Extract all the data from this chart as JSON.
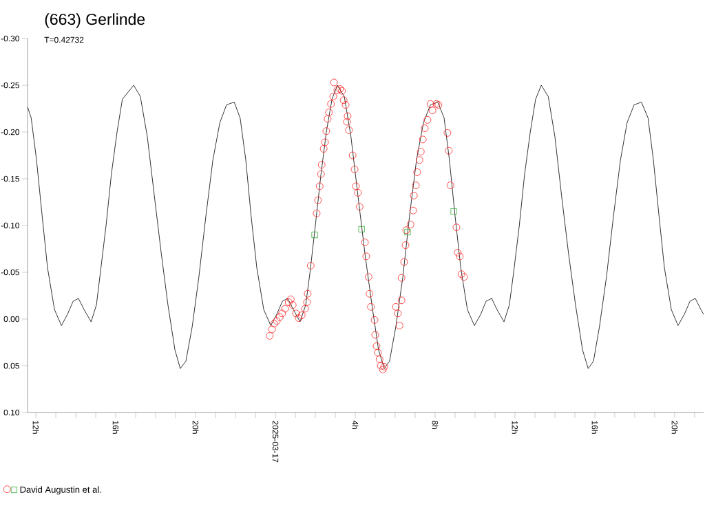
{
  "chart_data": {
    "type": "scatter",
    "title": "(663) Gerlinde",
    "subtitle": "T=0.42732",
    "xlim": [
      "2025-03-16T11:35",
      "2025-03-17T21:27"
    ],
    "ylim": [
      0.1,
      -0.3
    ],
    "xticks": [
      {
        "value": "2025-03-16T12:00",
        "label": "12h"
      },
      {
        "value": "2025-03-16T13:00",
        "label": null
      },
      {
        "value": "2025-03-16T14:00",
        "label": null
      },
      {
        "value": "2025-03-16T15:00",
        "label": null
      },
      {
        "value": "2025-03-16T16:00",
        "label": "16h"
      },
      {
        "value": "2025-03-16T17:00",
        "label": null
      },
      {
        "value": "2025-03-16T18:00",
        "label": null
      },
      {
        "value": "2025-03-16T19:00",
        "label": null
      },
      {
        "value": "2025-03-16T20:00",
        "label": "20h"
      },
      {
        "value": "2025-03-16T21:00",
        "label": null
      },
      {
        "value": "2025-03-16T22:00",
        "label": null
      },
      {
        "value": "2025-03-16T23:00",
        "label": null
      },
      {
        "value": "2025-03-17T00:00",
        "label": "2025-03-17"
      },
      {
        "value": "2025-03-17T01:00",
        "label": null
      },
      {
        "value": "2025-03-17T02:00",
        "label": null
      },
      {
        "value": "2025-03-17T03:00",
        "label": null
      },
      {
        "value": "2025-03-17T04:00",
        "label": "4h"
      },
      {
        "value": "2025-03-17T05:00",
        "label": null
      },
      {
        "value": "2025-03-17T06:00",
        "label": null
      },
      {
        "value": "2025-03-17T07:00",
        "label": null
      },
      {
        "value": "2025-03-17T08:00",
        "label": "8h"
      },
      {
        "value": "2025-03-17T09:00",
        "label": null
      },
      {
        "value": "2025-03-17T10:00",
        "label": null
      },
      {
        "value": "2025-03-17T11:00",
        "label": null
      },
      {
        "value": "2025-03-17T12:00",
        "label": "12h"
      },
      {
        "value": "2025-03-17T13:00",
        "label": null
      },
      {
        "value": "2025-03-17T14:00",
        "label": null
      },
      {
        "value": "2025-03-17T15:00",
        "label": null
      },
      {
        "value": "2025-03-17T16:00",
        "label": "16h"
      },
      {
        "value": "2025-03-17T17:00",
        "label": null
      },
      {
        "value": "2025-03-17T18:00",
        "label": null
      },
      {
        "value": "2025-03-17T19:00",
        "label": null
      },
      {
        "value": "2025-03-17T20:00",
        "label": "20h"
      },
      {
        "value": "2025-03-17T21:00",
        "label": null
      }
    ],
    "yticks": [
      {
        "value": -0.3,
        "label": "-0.30"
      },
      -0.25,
      {
        "value": -0.2,
        "label": "-0.20"
      },
      -0.15,
      {
        "value": -0.1,
        "label": "-0.10"
      },
      -0.05,
      {
        "value": 0,
        "label": "0.00"
      },
      0.05,
      {
        "value": 0.1,
        "label": "0.10"
      }
    ],
    "legend": "bottom left",
    "series": [
      {
        "type": "line",
        "color": "#000000",
        "marker": "none",
        "line_style": "solid",
        "x": [
          "2025-03-16T11:35",
          "2025-03-16T11:46",
          "2025-03-16T12:02",
          "2025-03-16T12:19",
          "2025-03-16T12:35",
          "2025-03-16T12:56",
          "2025-03-16T13:17",
          "2025-03-16T13:35",
          "2025-03-16T13:52",
          "2025-03-16T14:08",
          "2025-03-16T14:25",
          "2025-03-16T14:46",
          "2025-03-16T15:02",
          "2025-03-16T15:14",
          "2025-03-16T15:31",
          "2025-03-16T15:47",
          "2025-03-16T16:04",
          "2025-03-16T16:20",
          "2025-03-16T16:54",
          "2025-03-16T17:14",
          "2025-03-16T17:35",
          "2025-03-16T17:56",
          "2025-03-16T18:17",
          "2025-03-16T18:37",
          "2025-03-16T18:58",
          "2025-03-16T19:14",
          "2025-03-16T19:31",
          "2025-03-16T19:50",
          "2025-03-16T20:10",
          "2025-03-16T20:31",
          "2025-03-16T20:52",
          "2025-03-16T21:13",
          "2025-03-16T21:33",
          "2025-03-16T21:56",
          "2025-03-16T22:14",
          "2025-03-16T22:31",
          "2025-03-16T22:47",
          "2025-03-16T23:04",
          "2025-03-16T23:25",
          "2025-03-16T23:46",
          "2025-03-17T00:04",
          "2025-03-17T00:21",
          "2025-03-17T00:37",
          "2025-03-17T00:54",
          "2025-03-17T01:14",
          "2025-03-17T01:31",
          "2025-03-17T01:44",
          "2025-03-17T02:00",
          "2025-03-17T02:17",
          "2025-03-17T02:33",
          "2025-03-17T02:50",
          "2025-03-17T03:06",
          "2025-03-17T03:27",
          "2025-03-17T03:47",
          "2025-03-17T04:08",
          "2025-03-17T04:29",
          "2025-03-17T04:50",
          "2025-03-17T05:10",
          "2025-03-17T05:27",
          "2025-03-17T05:43",
          "2025-03-17T06:02",
          "2025-03-17T06:23",
          "2025-03-17T06:43",
          "2025-03-17T07:04",
          "2025-03-17T07:25",
          "2025-03-17T07:46",
          "2025-03-17T08:08",
          "2025-03-17T08:27",
          "2025-03-17T08:43",
          "2025-03-17T09:00",
          "2025-03-17T09:17",
          "2025-03-17T09:37",
          "2025-03-17T09:58",
          "2025-03-17T10:17",
          "2025-03-17T10:33",
          "2025-03-17T10:50",
          "2025-03-17T11:06",
          "2025-03-17T11:27",
          "2025-03-17T11:43",
          "2025-03-17T11:56",
          "2025-03-17T12:13",
          "2025-03-17T12:29",
          "2025-03-17T12:46",
          "2025-03-17T13:02",
          "2025-03-17T13:19",
          "2025-03-17T13:40",
          "2025-03-17T14:00",
          "2025-03-17T14:20",
          "2025-03-17T14:41",
          "2025-03-17T15:02",
          "2025-03-17T15:23",
          "2025-03-17T15:40",
          "2025-03-17T15:56",
          "2025-03-17T16:14",
          "2025-03-17T16:35",
          "2025-03-17T16:56",
          "2025-03-17T17:17",
          "2025-03-17T17:37",
          "2025-03-17T17:58",
          "2025-03-17T18:20",
          "2025-03-17T18:40",
          "2025-03-17T18:56",
          "2025-03-17T19:13",
          "2025-03-17T19:29",
          "2025-03-17T19:50",
          "2025-03-17T20:10",
          "2025-03-17T20:29",
          "2025-03-17T20:46",
          "2025-03-17T21:02",
          "2025-03-17T21:19",
          "2025-03-17T21:27"
        ],
        "values": [
          -0.227,
          -0.215,
          -0.17,
          -0.11,
          -0.055,
          -0.01,
          0.007,
          -0.005,
          -0.019,
          -0.022,
          -0.01,
          0.003,
          -0.015,
          -0.05,
          -0.1,
          -0.155,
          -0.2,
          -0.235,
          -0.25,
          -0.238,
          -0.195,
          -0.132,
          -0.07,
          -0.015,
          0.033,
          0.053,
          0.045,
          0.008,
          -0.045,
          -0.11,
          -0.17,
          -0.21,
          -0.229,
          -0.232,
          -0.215,
          -0.17,
          -0.11,
          -0.055,
          -0.01,
          0.007,
          -0.005,
          -0.019,
          -0.022,
          -0.01,
          0.003,
          -0.015,
          -0.05,
          -0.1,
          -0.155,
          -0.2,
          -0.235,
          -0.25,
          -0.238,
          -0.195,
          -0.132,
          -0.07,
          -0.015,
          0.033,
          0.053,
          0.045,
          0.008,
          -0.045,
          -0.11,
          -0.17,
          -0.21,
          -0.229,
          -0.232,
          -0.215,
          -0.17,
          -0.11,
          -0.055,
          -0.01,
          0.007,
          -0.005,
          -0.019,
          -0.022,
          -0.01,
          0.003,
          -0.015,
          -0.05,
          -0.1,
          -0.155,
          -0.2,
          -0.235,
          -0.25,
          -0.238,
          -0.195,
          -0.132,
          -0.07,
          -0.015,
          0.033,
          0.053,
          0.045,
          0.008,
          -0.045,
          -0.11,
          -0.17,
          -0.21,
          -0.229,
          -0.232,
          -0.215,
          -0.17,
          -0.11,
          -0.055,
          -0.01,
          0.007,
          -0.005,
          -0.019,
          -0.022,
          -0.01,
          -0.005
        ]
      },
      {
        "name": "David Augustin et al.",
        "color": "#ff2020",
        "marker": "circle",
        "x": [
          "2025-03-16T23:43",
          "2025-03-16T23:50",
          "2025-03-16T23:56",
          "2025-03-17T00:04",
          "2025-03-17T00:13",
          "2025-03-17T00:20",
          "2025-03-17T00:29",
          "2025-03-17T00:40",
          "2025-03-17T00:46",
          "2025-03-17T00:52",
          "2025-03-17T01:02",
          "2025-03-17T01:10",
          "2025-03-17T01:19",
          "2025-03-17T01:29",
          "2025-03-17T01:35",
          "2025-03-17T01:37",
          "2025-03-17T01:46",
          "2025-03-17T02:04",
          "2025-03-17T02:08",
          "2025-03-17T02:13",
          "2025-03-17T02:17",
          "2025-03-17T02:19",
          "2025-03-17T02:25",
          "2025-03-17T02:29",
          "2025-03-17T02:33",
          "2025-03-17T02:37",
          "2025-03-17T02:41",
          "2025-03-17T02:47",
          "2025-03-17T02:54",
          "2025-03-17T02:56",
          "2025-03-17T03:06",
          "2025-03-17T03:14",
          "2025-03-17T03:20",
          "2025-03-17T03:25",
          "2025-03-17T03:31",
          "2025-03-17T03:37",
          "2025-03-17T03:35",
          "2025-03-17T03:41",
          "2025-03-17T03:52",
          "2025-03-17T03:58",
          "2025-03-17T04:02",
          "2025-03-17T04:08",
          "2025-03-17T04:13",
          "2025-03-17T04:29",
          "2025-03-17T04:33",
          "2025-03-17T04:40",
          "2025-03-17T04:43",
          "2025-03-17T04:47",
          "2025-03-17T04:58",
          "2025-03-17T05:00",
          "2025-03-17T05:04",
          "2025-03-17T05:08",
          "2025-03-17T05:13",
          "2025-03-17T05:17",
          "2025-03-17T05:23",
          "2025-03-17T05:27",
          "2025-03-17T06:02",
          "2025-03-17T06:08",
          "2025-03-17T06:13",
          "2025-03-17T06:19",
          "2025-03-17T06:19",
          "2025-03-17T06:27",
          "2025-03-17T06:31",
          "2025-03-17T06:33",
          "2025-03-17T06:46",
          "2025-03-17T06:54",
          "2025-03-17T06:56",
          "2025-03-17T07:02",
          "2025-03-17T07:06",
          "2025-03-17T07:13",
          "2025-03-17T07:17",
          "2025-03-17T07:23",
          "2025-03-17T07:29",
          "2025-03-17T07:37",
          "2025-03-17T07:46",
          "2025-03-17T07:52",
          "2025-03-17T08:04",
          "2025-03-17T08:10",
          "2025-03-17T08:37",
          "2025-03-17T08:41",
          "2025-03-17T08:46",
          "2025-03-17T09:04",
          "2025-03-17T09:08",
          "2025-03-17T09:14",
          "2025-03-17T09:19",
          "2025-03-17T09:27"
        ],
        "values": [
          0.018,
          0.011,
          0.005,
          0.002,
          -0.002,
          -0.006,
          -0.011,
          -0.018,
          -0.021,
          -0.015,
          -0.006,
          -0.001,
          -0.004,
          -0.011,
          -0.018,
          -0.027,
          -0.057,
          -0.113,
          -0.127,
          -0.142,
          -0.155,
          -0.165,
          -0.182,
          -0.189,
          -0.201,
          -0.214,
          -0.221,
          -0.23,
          -0.238,
          -0.253,
          -0.245,
          -0.246,
          -0.244,
          -0.234,
          -0.229,
          -0.217,
          -0.211,
          -0.202,
          -0.175,
          -0.16,
          -0.142,
          -0.135,
          -0.12,
          -0.082,
          -0.067,
          -0.045,
          -0.027,
          -0.013,
          0.001,
          0.017,
          0.029,
          0.036,
          0.043,
          0.05,
          0.054,
          0.051,
          -0.013,
          -0.006,
          0.007,
          -0.02,
          -0.044,
          -0.061,
          -0.079,
          -0.095,
          -0.101,
          -0.116,
          -0.132,
          -0.143,
          -0.157,
          -0.17,
          -0.179,
          -0.192,
          -0.204,
          -0.213,
          -0.23,
          -0.223,
          -0.23,
          -0.229,
          -0.199,
          -0.18,
          -0.143,
          -0.098,
          -0.071,
          -0.067,
          -0.048,
          -0.045
        ]
      },
      {
        "color": "#33aa33",
        "marker": "square",
        "x": [
          "2025-03-17T01:58",
          "2025-03-17T04:19",
          "2025-03-17T06:37",
          "2025-03-17T08:56"
        ],
        "values": [
          -0.09,
          -0.096,
          -0.093,
          -0.115
        ]
      }
    ]
  }
}
